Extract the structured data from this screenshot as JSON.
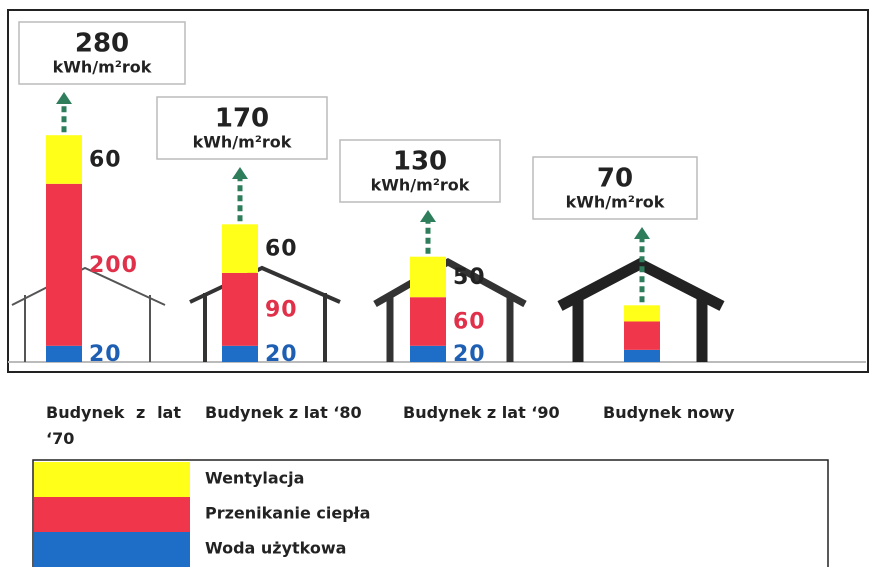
{
  "chart_data": {
    "type": "stacked_bar",
    "categories": [
      "Budynek z lat ‘70",
      "Budynek z lat ‘80",
      "Budynek z lat ‘90",
      "Budynek nowy"
    ],
    "series": [
      {
        "name": "Woda użytkowa",
        "color": "#1e6ec8",
        "label_color": "#1e5fb4",
        "values": [
          20,
          20,
          20,
          15
        ]
      },
      {
        "name": "Przenikanie ciepła",
        "color": "#f0364b",
        "label_color": "#e0304a",
        "values": [
          200,
          90,
          60,
          35
        ]
      },
      {
        "name": "Wentylacja",
        "color": "#ffff1a",
        "label_color": "#222222",
        "values": [
          60,
          60,
          50,
          20
        ]
      }
    ],
    "totals": [
      280,
      170,
      130,
      70
    ],
    "total_unit": "kWh/m²rok",
    "data_labels": [
      true,
      true,
      true,
      false
    ]
  }
}
